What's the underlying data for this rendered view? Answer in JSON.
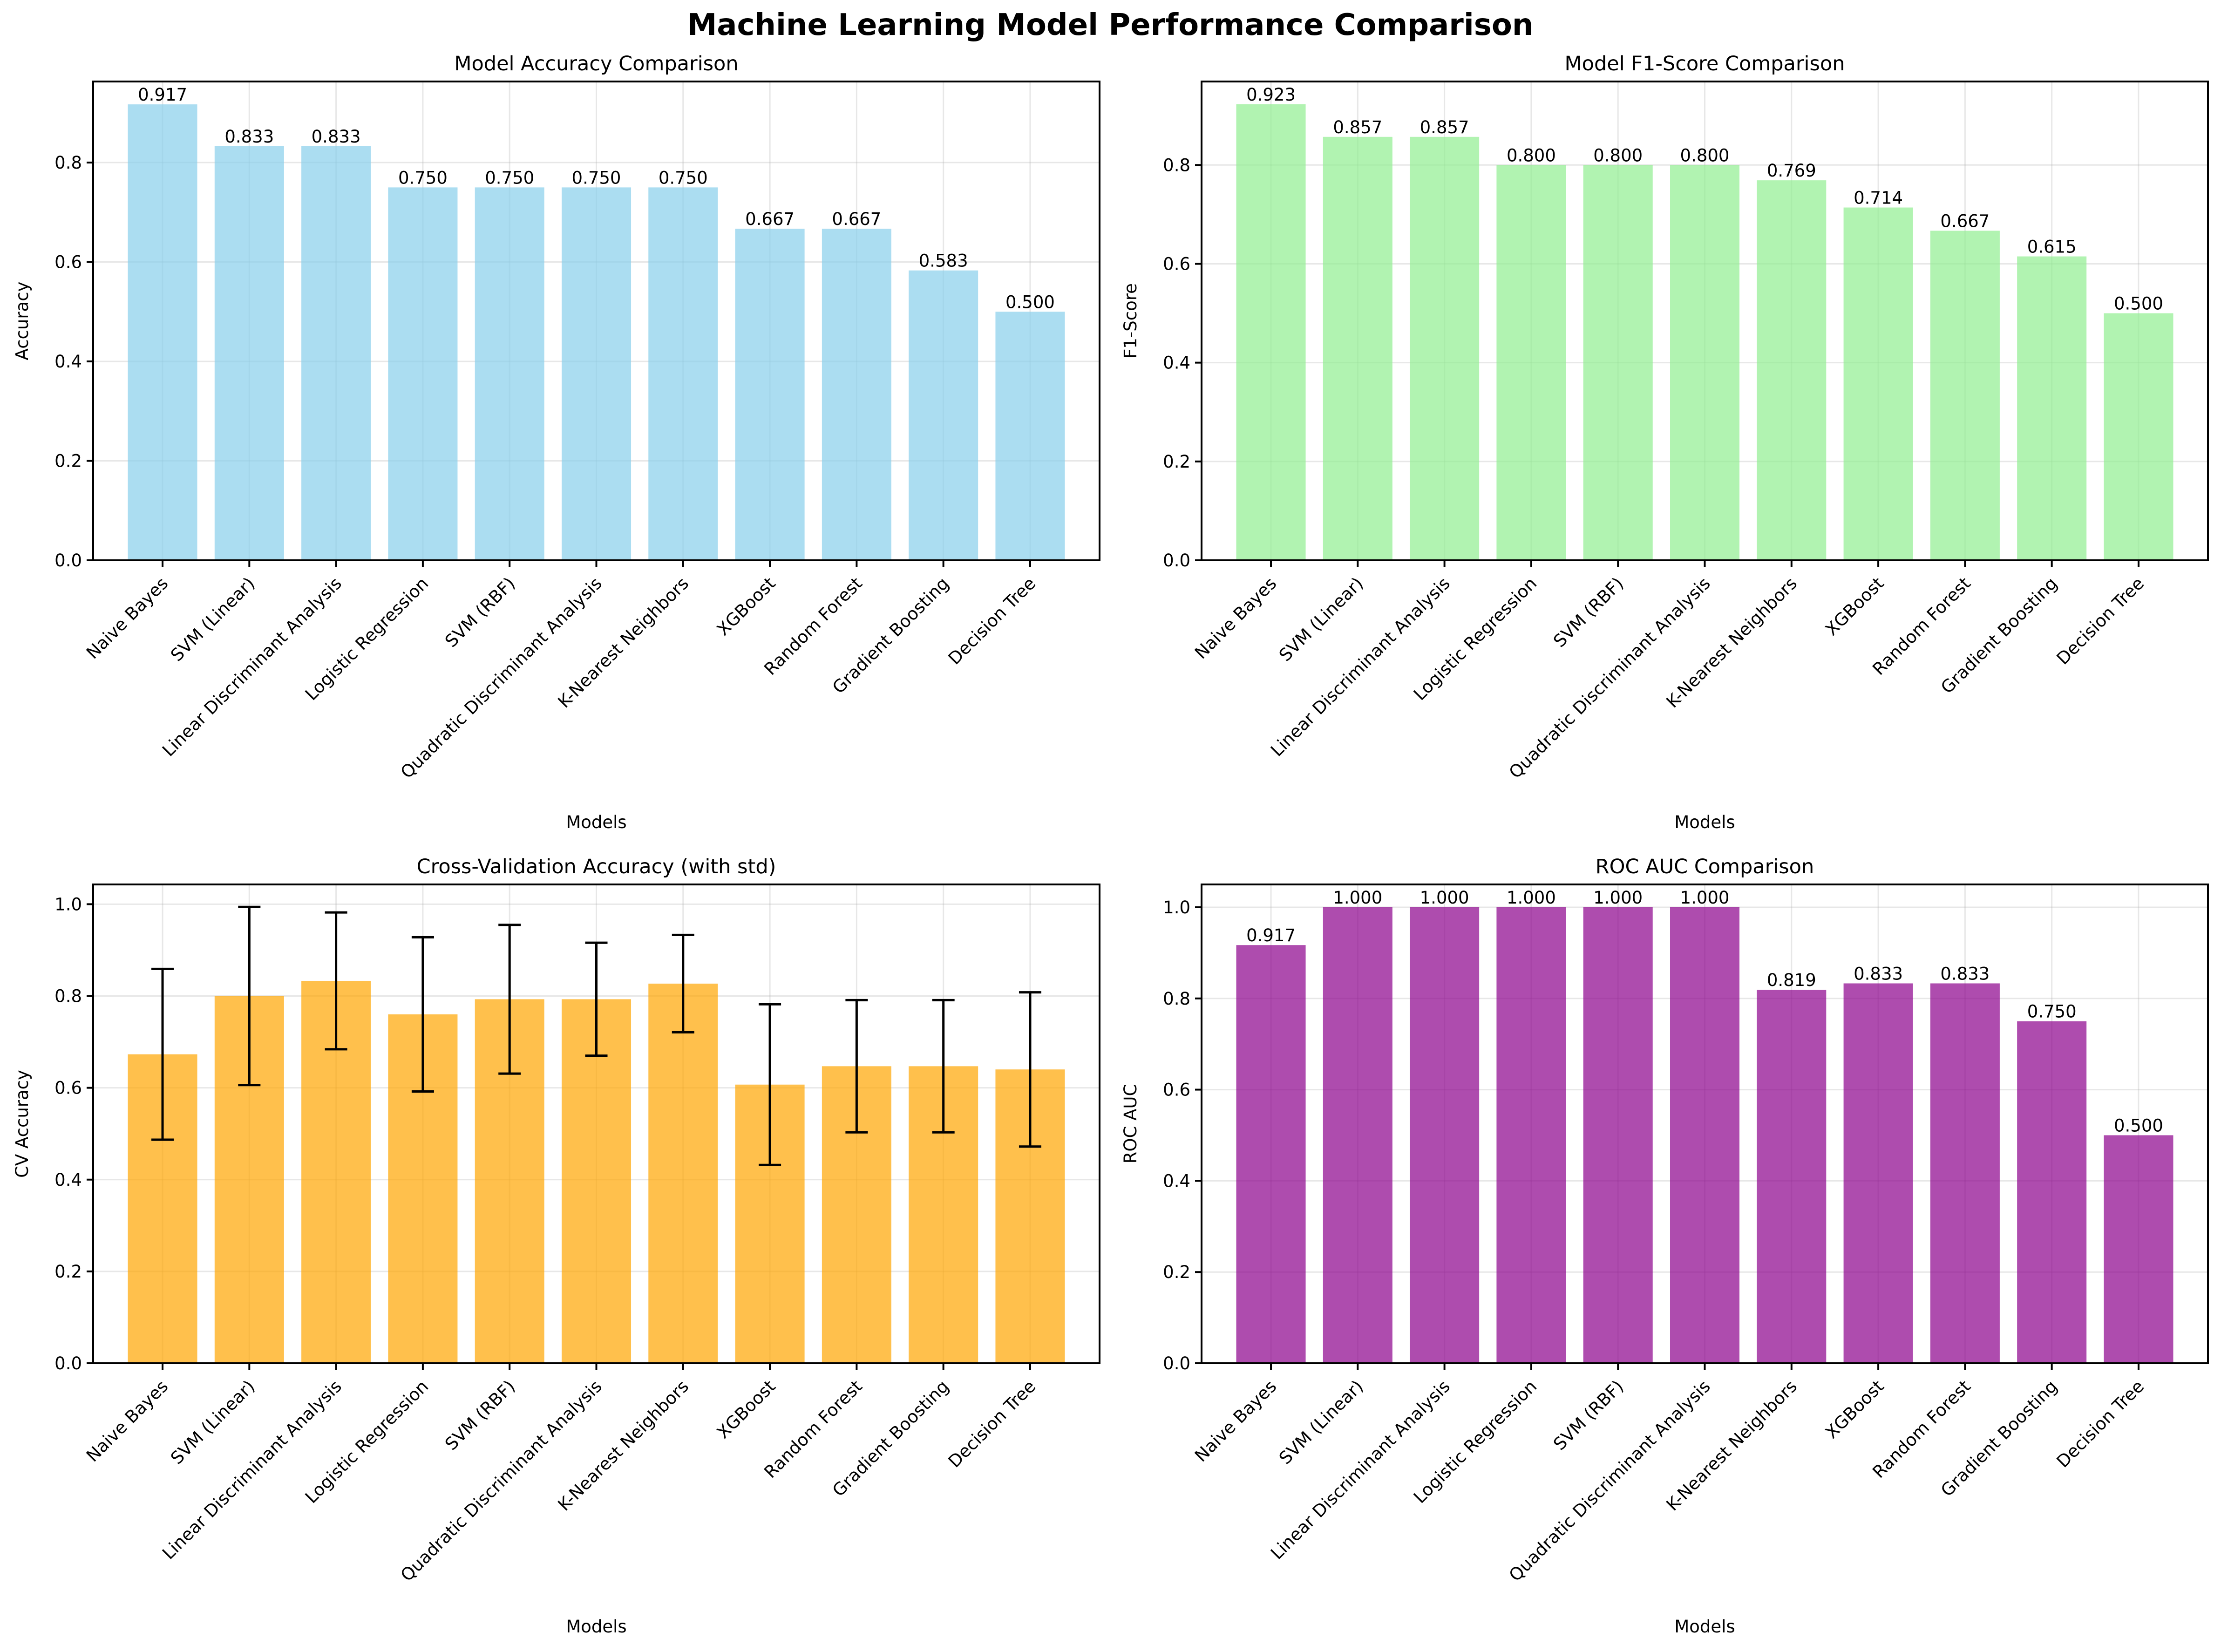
{
  "figure_title": "Machine Learning Model Performance Comparison",
  "chart_data": [
    {
      "type": "bar",
      "title": "Model Accuracy Comparison",
      "xlabel": "Models",
      "ylabel": "Accuracy",
      "categories": [
        "Naive Bayes",
        "SVM (Linear)",
        "Linear Discriminant Analysis",
        "Logistic Regression",
        "SVM (RBF)",
        "Quadratic Discriminant Analysis",
        "K-Nearest Neighbors",
        "XGBoost",
        "Random Forest",
        "Gradient Boosting",
        "Decision Tree"
      ],
      "values": [
        0.917,
        0.833,
        0.833,
        0.75,
        0.75,
        0.75,
        0.75,
        0.667,
        0.667,
        0.583,
        0.5
      ],
      "value_labels": [
        "0.917",
        "0.833",
        "0.833",
        "0.750",
        "0.750",
        "0.750",
        "0.750",
        "0.667",
        "0.667",
        "0.583",
        "0.500"
      ],
      "yticks": [
        "0.0",
        "0.2",
        "0.4",
        "0.6",
        "0.8"
      ],
      "ylim": [
        0,
        0.963
      ],
      "color": "#87ceeb",
      "grid": true
    },
    {
      "type": "bar",
      "title": "Model F1-Score Comparison",
      "xlabel": "Models",
      "ylabel": "F1-Score",
      "categories": [
        "Naive Bayes",
        "SVM (Linear)",
        "Linear Discriminant Analysis",
        "Logistic Regression",
        "SVM (RBF)",
        "Quadratic Discriminant Analysis",
        "K-Nearest Neighbors",
        "XGBoost",
        "Random Forest",
        "Gradient Boosting",
        "Decision Tree"
      ],
      "values": [
        0.923,
        0.857,
        0.857,
        0.8,
        0.8,
        0.8,
        0.769,
        0.714,
        0.667,
        0.615,
        0.5
      ],
      "value_labels": [
        "0.923",
        "0.857",
        "0.857",
        "0.800",
        "0.800",
        "0.800",
        "0.769",
        "0.714",
        "0.667",
        "0.615",
        "0.500"
      ],
      "yticks": [
        "0.0",
        "0.2",
        "0.4",
        "0.6",
        "0.8"
      ],
      "ylim": [
        0,
        0.969
      ],
      "color": "#90ee90",
      "grid": true
    },
    {
      "type": "bar",
      "title": "Cross-Validation Accuracy (with std)",
      "xlabel": "Models",
      "ylabel": "CV Accuracy",
      "categories": [
        "Naive Bayes",
        "SVM (Linear)",
        "Linear Discriminant Analysis",
        "Logistic Regression",
        "SVM (RBF)",
        "Quadratic Discriminant Analysis",
        "K-Nearest Neighbors",
        "XGBoost",
        "Random Forest",
        "Gradient Boosting",
        "Decision Tree"
      ],
      "values": [
        0.673,
        0.8,
        0.833,
        0.76,
        0.793,
        0.793,
        0.827,
        0.607,
        0.647,
        0.647,
        0.64
      ],
      "errors": [
        0.186,
        0.194,
        0.149,
        0.168,
        0.162,
        0.123,
        0.106,
        0.175,
        0.144,
        0.144,
        0.168
      ],
      "yticks": [
        "0.0",
        "0.2",
        "0.4",
        "0.6",
        "0.8",
        "1.0"
      ],
      "ylim": [
        0,
        1.043
      ],
      "color": "#ffa500",
      "grid": true
    },
    {
      "type": "bar",
      "title": "ROC AUC Comparison",
      "xlabel": "Models",
      "ylabel": "ROC AUC",
      "categories": [
        "Naive Bayes",
        "SVM (Linear)",
        "Linear Discriminant Analysis",
        "Logistic Regression",
        "SVM (RBF)",
        "Quadratic Discriminant Analysis",
        "K-Nearest Neighbors",
        "XGBoost",
        "Random Forest",
        "Gradient Boosting",
        "Decision Tree"
      ],
      "values": [
        0.917,
        1.0,
        1.0,
        1.0,
        1.0,
        1.0,
        0.819,
        0.833,
        0.833,
        0.75,
        0.5
      ],
      "value_labels": [
        "0.917",
        "1.000",
        "1.000",
        "1.000",
        "1.000",
        "1.000",
        "0.819",
        "0.833",
        "0.833",
        "0.750",
        "0.500"
      ],
      "yticks": [
        "0.0",
        "0.2",
        "0.4",
        "0.6",
        "0.8",
        "1.0"
      ],
      "ylim": [
        0,
        1.05
      ],
      "color": "#8b008b",
      "grid": true
    }
  ]
}
